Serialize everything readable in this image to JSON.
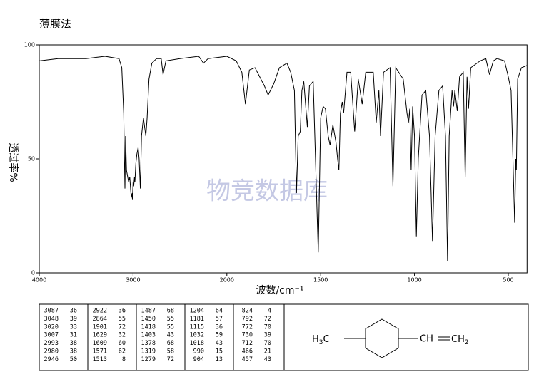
{
  "chart_data": {
    "type": "line",
    "title": "薄膜法",
    "watermark": "物竞数据库",
    "xlabel": "波数/cm⁻¹",
    "ylabel": "透过率%",
    "color": "#000000",
    "xlim": [
      4000,
      400
    ],
    "xticks": [
      4000,
      3000,
      2000,
      1500,
      1000,
      500
    ],
    "ylim": [
      0,
      100
    ],
    "yticks": [
      0,
      50,
      100
    ],
    "x": [
      4000,
      3800,
      3500,
      3300,
      3150,
      3120,
      3100,
      3087,
      3080,
      3070,
      3048,
      3035,
      3020,
      3010,
      3007,
      3000,
      2993,
      2985,
      2980,
      2970,
      2960,
      2946,
      2935,
      2922,
      2910,
      2890,
      2864,
      2850,
      2830,
      2800,
      2750,
      2700,
      2680,
      2650,
      2500,
      2300,
      2250,
      2200,
      2000,
      1950,
      1920,
      1901,
      1880,
      1850,
      1800,
      1780,
      1750,
      1720,
      1680,
      1660,
      1640,
      1629,
      1620,
      1609,
      1600,
      1590,
      1571,
      1560,
      1540,
      1513,
      1500,
      1487,
      1475,
      1460,
      1450,
      1435,
      1418,
      1410,
      1403,
      1395,
      1385,
      1378,
      1360,
      1340,
      1319,
      1300,
      1279,
      1260,
      1220,
      1204,
      1190,
      1181,
      1165,
      1130,
      1115,
      1100,
      1060,
      1040,
      1032,
      1025,
      1018,
      1010,
      1000,
      990,
      980,
      960,
      940,
      920,
      904,
      890,
      870,
      850,
      835,
      824,
      815,
      800,
      792,
      785,
      772,
      760,
      740,
      730,
      720,
      712,
      700,
      650,
      620,
      600,
      580,
      560,
      520,
      500,
      485,
      466,
      460,
      457,
      450,
      430,
      400
    ],
    "values": [
      93,
      94,
      94,
      95,
      94,
      90,
      70,
      37,
      60,
      45,
      40,
      42,
      33,
      35,
      32,
      40,
      38,
      42,
      40,
      48,
      52,
      55,
      50,
      37,
      60,
      68,
      60,
      68,
      85,
      92,
      94,
      94,
      87,
      93,
      94,
      95,
      92,
      94,
      95,
      93,
      88,
      74,
      89,
      90,
      82,
      78,
      83,
      90,
      92,
      88,
      80,
      35,
      60,
      62,
      80,
      84,
      64,
      82,
      84,
      9,
      68,
      73,
      72,
      60,
      56,
      65,
      57,
      50,
      45,
      70,
      75,
      70,
      88,
      88,
      62,
      85,
      74,
      88,
      88,
      66,
      80,
      60,
      88,
      90,
      38,
      90,
      85,
      70,
      66,
      72,
      45,
      73,
      60,
      16,
      50,
      78,
      80,
      60,
      14,
      60,
      80,
      82,
      60,
      5,
      60,
      80,
      73,
      80,
      71,
      86,
      88,
      42,
      86,
      72,
      90,
      93,
      94,
      87,
      93,
      94,
      93,
      86,
      80,
      22,
      50,
      45,
      85,
      90,
      91
    ]
  },
  "peak_table": [
    [
      [
        3087,
        36
      ],
      [
        3048,
        39
      ],
      [
        3020,
        33
      ],
      [
        3007,
        31
      ],
      [
        2993,
        38
      ],
      [
        2980,
        38
      ],
      [
        2946,
        50
      ]
    ],
    [
      [
        2922,
        36
      ],
      [
        2864,
        55
      ],
      [
        1901,
        72
      ],
      [
        1629,
        32
      ],
      [
        1609,
        60
      ],
      [
        1571,
        62
      ],
      [
        1513,
        8
      ]
    ],
    [
      [
        1487,
        68
      ],
      [
        1450,
        55
      ],
      [
        1418,
        55
      ],
      [
        1403,
        43
      ],
      [
        1378,
        68
      ],
      [
        1319,
        58
      ],
      [
        1279,
        72
      ]
    ],
    [
      [
        1204,
        64
      ],
      [
        1181,
        57
      ],
      [
        1115,
        36
      ],
      [
        1032,
        59
      ],
      [
        1018,
        43
      ],
      [
        990,
        15
      ],
      [
        904,
        13
      ]
    ],
    [
      [
        824,
        4
      ],
      [
        792,
        72
      ],
      [
        772,
        70
      ],
      [
        730,
        39
      ],
      [
        712,
        70
      ],
      [
        466,
        21
      ],
      [
        457,
        43
      ]
    ]
  ],
  "structure": {
    "left": [
      "H",
      "3",
      "C"
    ],
    "right": [
      "CH",
      "CH",
      "2"
    ]
  }
}
